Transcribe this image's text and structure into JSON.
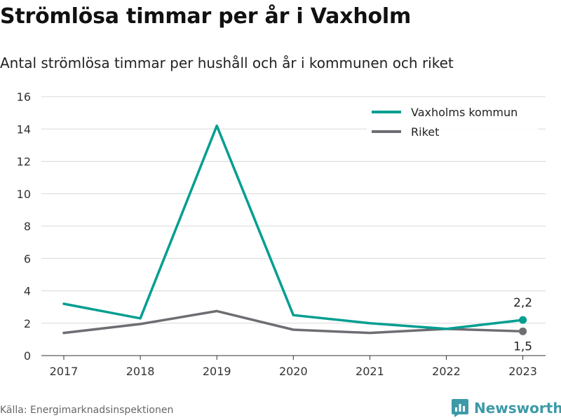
{
  "header": {
    "title": "Strömlösa timmar per år i Vaxholm",
    "subtitle": "Antal strömlösa timmar per hushåll och år i kommunen och riket"
  },
  "footer": {
    "source": "Källa: Energimarknadsinspektionen",
    "brand": "Newsworthy",
    "brand_icon": "newsworthy-logo-icon"
  },
  "colors": {
    "vaxholm": "#009e91",
    "riket": "#6e6d72",
    "grid": "#d8d8d8",
    "brand": "#3d9aa8"
  },
  "chart_data": {
    "type": "line",
    "title": "Strömlösa timmar per år i Vaxholm",
    "subtitle": "Antal strömlösa timmar per hushåll och år i kommunen och riket",
    "x": [
      2017,
      2018,
      2019,
      2020,
      2021,
      2022,
      2023
    ],
    "x_tick_labels": [
      "2017",
      "2018",
      "2019",
      "2020",
      "2021",
      "2022",
      "2023"
    ],
    "y_ticks": [
      0,
      2,
      4,
      6,
      8,
      10,
      12,
      14,
      16
    ],
    "y_tick_labels": [
      "0",
      "2",
      "4",
      "6",
      "8",
      "10",
      "12",
      "14",
      "16"
    ],
    "ylim": [
      0,
      16
    ],
    "grid": true,
    "legend": "top-right",
    "series": [
      {
        "name": "Vaxholms kommun",
        "color": "#009e91",
        "values": [
          3.2,
          2.3,
          14.2,
          2.5,
          2.0,
          1.65,
          2.2
        ],
        "end_label": "2,2"
      },
      {
        "name": "Riket",
        "color": "#6e6d72",
        "values": [
          1.4,
          1.95,
          2.75,
          1.6,
          1.4,
          1.65,
          1.5
        ],
        "end_label": "1,5"
      }
    ]
  }
}
